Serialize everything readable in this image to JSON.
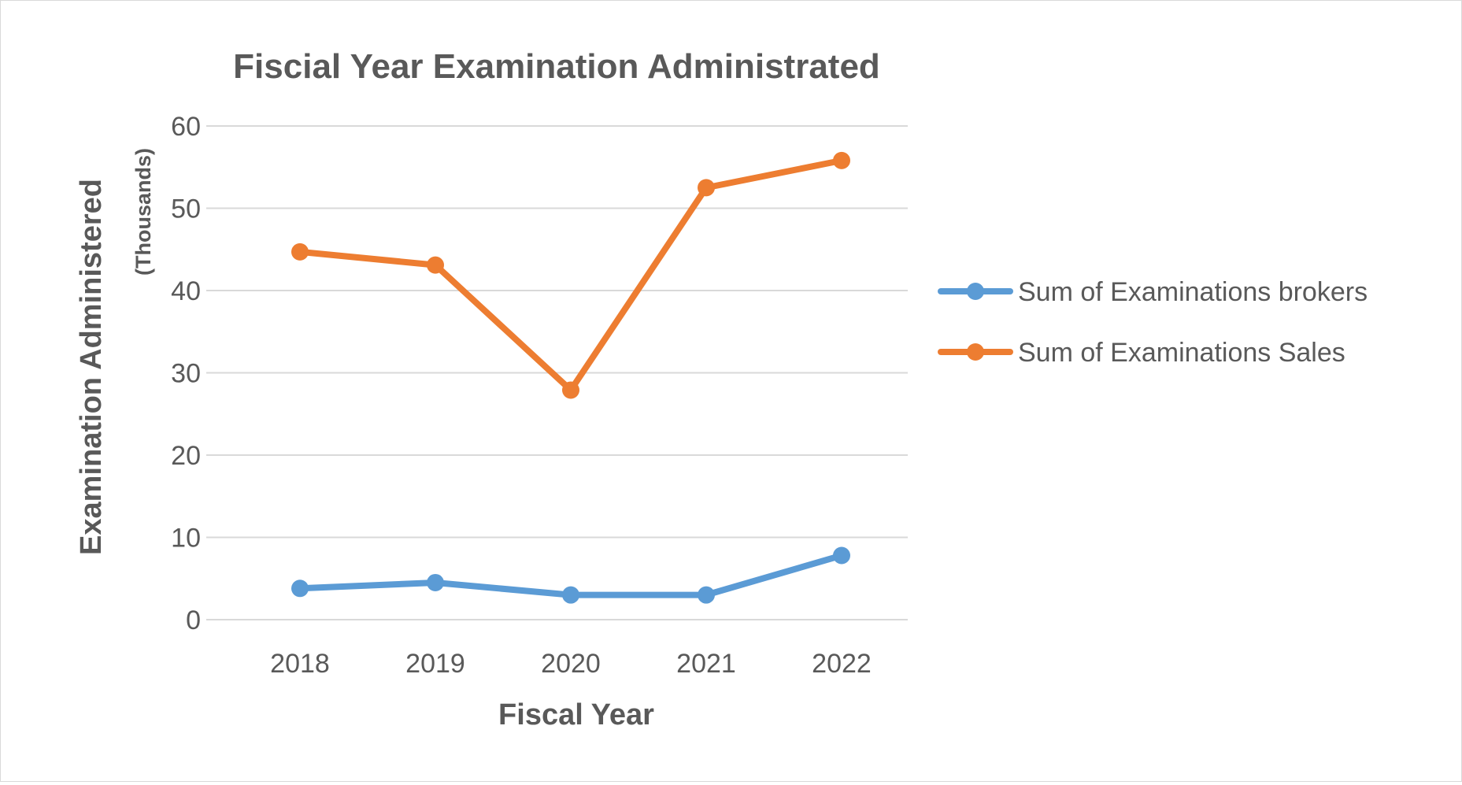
{
  "chart_data": {
    "type": "line",
    "title": "Fiscial Year Examination Administrated",
    "xlabel": "Fiscal Year",
    "ylabel": "Examination Administered",
    "y_units_label": "(Thousands)",
    "categories": [
      "2018",
      "2019",
      "2020",
      "2021",
      "2022"
    ],
    "ylim": [
      0,
      60
    ],
    "yticks": [
      0,
      10,
      20,
      30,
      40,
      50,
      60
    ],
    "grid": true,
    "legend_position": "right",
    "series": [
      {
        "name": "Sum of Examinations brokers",
        "color": "#5b9bd5",
        "values": [
          3.8,
          4.5,
          3.0,
          3.0,
          7.8
        ]
      },
      {
        "name": "Sum of Examinations Sales",
        "color": "#ed7d31",
        "values": [
          44.7,
          43.1,
          27.9,
          52.5,
          55.8
        ]
      }
    ]
  }
}
